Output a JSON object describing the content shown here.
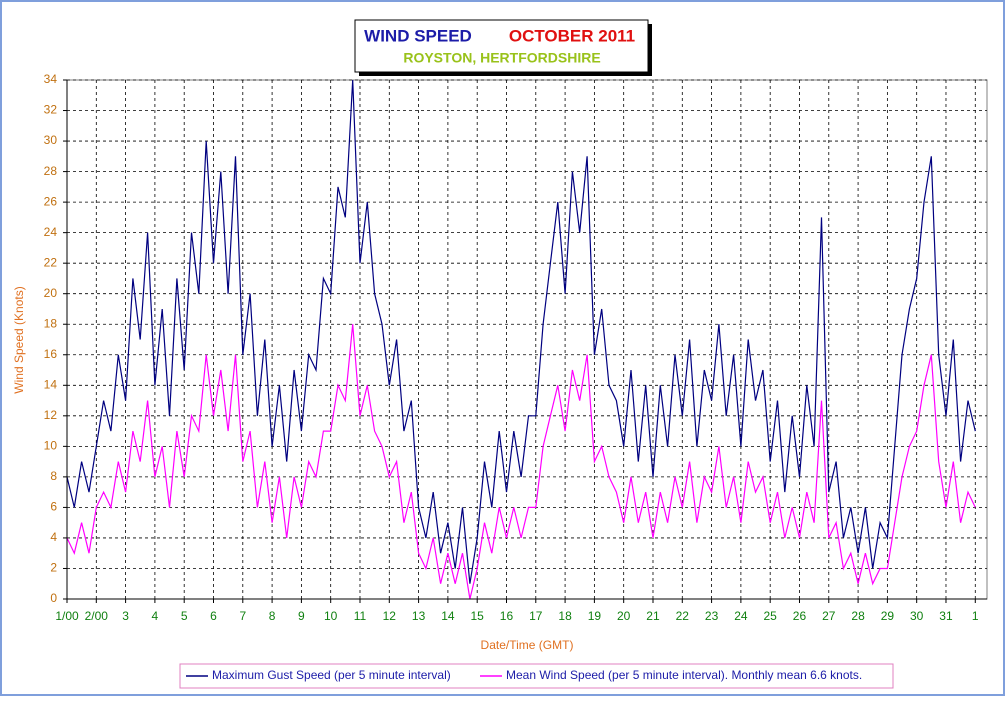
{
  "chart_data": {
    "type": "line",
    "title": "WIND SPEED",
    "title_period": "OCTOBER 2011",
    "subtitle": "ROYSTON, HERTFORDSHIRE",
    "x_label": "Date/Time (GMT)",
    "y_label": "Wind Speed (Knots)",
    "grid": true,
    "legend": "bottom",
    "xlim": [
      0,
      31.4
    ],
    "ylim": [
      0,
      34
    ],
    "yticks": [
      0,
      2,
      4,
      6,
      8,
      10,
      12,
      14,
      16,
      18,
      20,
      22,
      24,
      26,
      28,
      30,
      32,
      34
    ],
    "xticks": [
      {
        "value": 0,
        "label": "1/00"
      },
      {
        "value": 1,
        "label": "2/00"
      },
      {
        "value": 2,
        "label": "3"
      },
      {
        "value": 3,
        "label": "4"
      },
      {
        "value": 4,
        "label": "5"
      },
      {
        "value": 5,
        "label": "6"
      },
      {
        "value": 6,
        "label": "7"
      },
      {
        "value": 7,
        "label": "8"
      },
      {
        "value": 8,
        "label": "9"
      },
      {
        "value": 9,
        "label": "10"
      },
      {
        "value": 10,
        "label": "11"
      },
      {
        "value": 11,
        "label": "12"
      },
      {
        "value": 12,
        "label": "13"
      },
      {
        "value": 13,
        "label": "14"
      },
      {
        "value": 14,
        "label": "15"
      },
      {
        "value": 15,
        "label": "16"
      },
      {
        "value": 16,
        "label": "17"
      },
      {
        "value": 17,
        "label": "18"
      },
      {
        "value": 18,
        "label": "19"
      },
      {
        "value": 19,
        "label": "20"
      },
      {
        "value": 20,
        "label": "21"
      },
      {
        "value": 21,
        "label": "22"
      },
      {
        "value": 22,
        "label": "23"
      },
      {
        "value": 23,
        "label": "24"
      },
      {
        "value": 24,
        "label": "25"
      },
      {
        "value": 25,
        "label": "26"
      },
      {
        "value": 26,
        "label": "27"
      },
      {
        "value": 27,
        "label": "28"
      },
      {
        "value": 28,
        "label": "29"
      },
      {
        "value": 29,
        "label": "30"
      },
      {
        "value": 30,
        "label": "31"
      },
      {
        "value": 31,
        "label": "1"
      }
    ],
    "x": [
      0,
      0.25,
      0.5,
      0.75,
      1,
      1.25,
      1.5,
      1.75,
      2,
      2.25,
      2.5,
      2.75,
      3,
      3.25,
      3.5,
      3.75,
      4,
      4.25,
      4.5,
      4.75,
      5,
      5.25,
      5.5,
      5.75,
      6,
      6.25,
      6.5,
      6.75,
      7,
      7.25,
      7.5,
      7.75,
      8,
      8.25,
      8.5,
      8.75,
      9,
      9.25,
      9.5,
      9.75,
      10,
      10.25,
      10.5,
      10.75,
      11,
      11.25,
      11.5,
      11.75,
      12,
      12.25,
      12.5,
      12.75,
      13,
      13.25,
      13.5,
      13.75,
      14,
      14.25,
      14.5,
      14.75,
      15,
      15.25,
      15.5,
      15.75,
      16,
      16.25,
      16.5,
      16.75,
      17,
      17.25,
      17.5,
      17.75,
      18,
      18.25,
      18.5,
      18.75,
      19,
      19.25,
      19.5,
      19.75,
      20,
      20.25,
      20.5,
      20.75,
      21,
      21.25,
      21.5,
      21.75,
      22,
      22.25,
      22.5,
      22.75,
      23,
      23.25,
      23.5,
      23.75,
      24,
      24.25,
      24.5,
      24.75,
      25,
      25.25,
      25.5,
      25.75,
      26,
      26.25,
      26.5,
      26.75,
      27,
      27.25,
      27.5,
      27.75,
      28,
      28.25,
      28.5,
      28.75,
      29,
      29.25,
      29.5,
      29.75,
      30,
      30.25,
      30.5,
      30.75,
      31
    ],
    "series": [
      {
        "name": "Maximum Gust Speed (per 5 minute interval)",
        "color": "#000080",
        "values": [
          8,
          6,
          9,
          7,
          10,
          13,
          11,
          16,
          13,
          21,
          17,
          24,
          14,
          19,
          12,
          21,
          15,
          24,
          20,
          30,
          22,
          28,
          20,
          29,
          16,
          20,
          12,
          17,
          10,
          14,
          9,
          15,
          11,
          16,
          15,
          21,
          20,
          27,
          25,
          34,
          22,
          26,
          20,
          18,
          14,
          17,
          11,
          13,
          6,
          4,
          7,
          3,
          5,
          2,
          6,
          1,
          4,
          9,
          6,
          11,
          7,
          11,
          8,
          12,
          12,
          18,
          22,
          26,
          20,
          28,
          24,
          29,
          16,
          19,
          14,
          13,
          10,
          15,
          9,
          14,
          8,
          14,
          10,
          16,
          12,
          17,
          10,
          15,
          13,
          18,
          12,
          16,
          10,
          17,
          13,
          15,
          9,
          13,
          7,
          12,
          8,
          14,
          10,
          25,
          7,
          9,
          4,
          6,
          3,
          6,
          2,
          5,
          4,
          10,
          16,
          19,
          21,
          26,
          29,
          16,
          12,
          17,
          9,
          13,
          11
        ]
      },
      {
        "name": "Mean Wind Speed (per 5 minute interval). Monthly mean 6.6 knots.",
        "color": "#ff00ff",
        "values": [
          4,
          3,
          5,
          3,
          6,
          7,
          6,
          9,
          7,
          11,
          9,
          13,
          8,
          10,
          6,
          11,
          8,
          12,
          11,
          16,
          12,
          15,
          11,
          16,
          9,
          11,
          6,
          9,
          5,
          8,
          4,
          8,
          6,
          9,
          8,
          11,
          11,
          14,
          13,
          18,
          12,
          14,
          11,
          10,
          8,
          9,
          5,
          7,
          3,
          2,
          4,
          1,
          3,
          1,
          3,
          0,
          2,
          5,
          3,
          6,
          4,
          6,
          4,
          6,
          6,
          10,
          12,
          14,
          11,
          15,
          13,
          16,
          9,
          10,
          8,
          7,
          5,
          8,
          5,
          7,
          4,
          7,
          5,
          8,
          6,
          9,
          5,
          8,
          7,
          10,
          6,
          8,
          5,
          9,
          7,
          8,
          5,
          7,
          4,
          6,
          4,
          7,
          5,
          13,
          4,
          5,
          2,
          3,
          1,
          3,
          1,
          2,
          2,
          5,
          8,
          10,
          11,
          14,
          16,
          9,
          6,
          9,
          5,
          7,
          6
        ]
      }
    ]
  }
}
